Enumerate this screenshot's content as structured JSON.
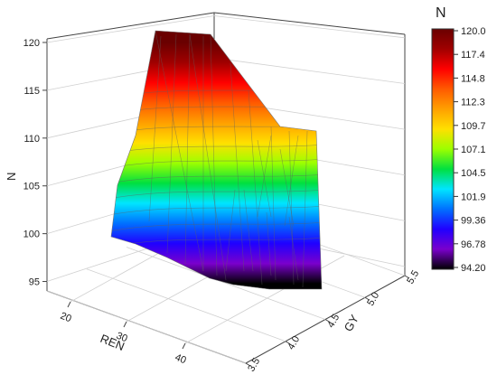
{
  "chart_data": {
    "type": "surface3d",
    "axes": {
      "x": {
        "label": "REN",
        "ticks": [
          "20",
          "30",
          "40"
        ]
      },
      "y": {
        "label": "GY",
        "ticks": [
          "3.5",
          "4.0",
          "4.5",
          "5.0",
          "5.5"
        ]
      },
      "z": {
        "label": "N",
        "ticks": [
          "95",
          "100",
          "105",
          "110",
          "115",
          "120"
        ],
        "range": [
          94.2,
          120.0
        ]
      }
    },
    "colorbar": {
      "title": "N",
      "labels": [
        "120.0",
        "117.4",
        "114.8",
        "112.3",
        "109.7",
        "107.1",
        "104.5",
        "101.9",
        "99.36",
        "96.78",
        "94.20"
      ],
      "colors": [
        "#6a0000",
        "#a00000",
        "#ff0000",
        "#ff5a00",
        "#ffa000",
        "#ffe000",
        "#9cff00",
        "#00e040",
        "#00e5ff",
        "#0070ff",
        "#2000ff",
        "#7a00cc",
        "#000000"
      ]
    },
    "grid": true
  }
}
